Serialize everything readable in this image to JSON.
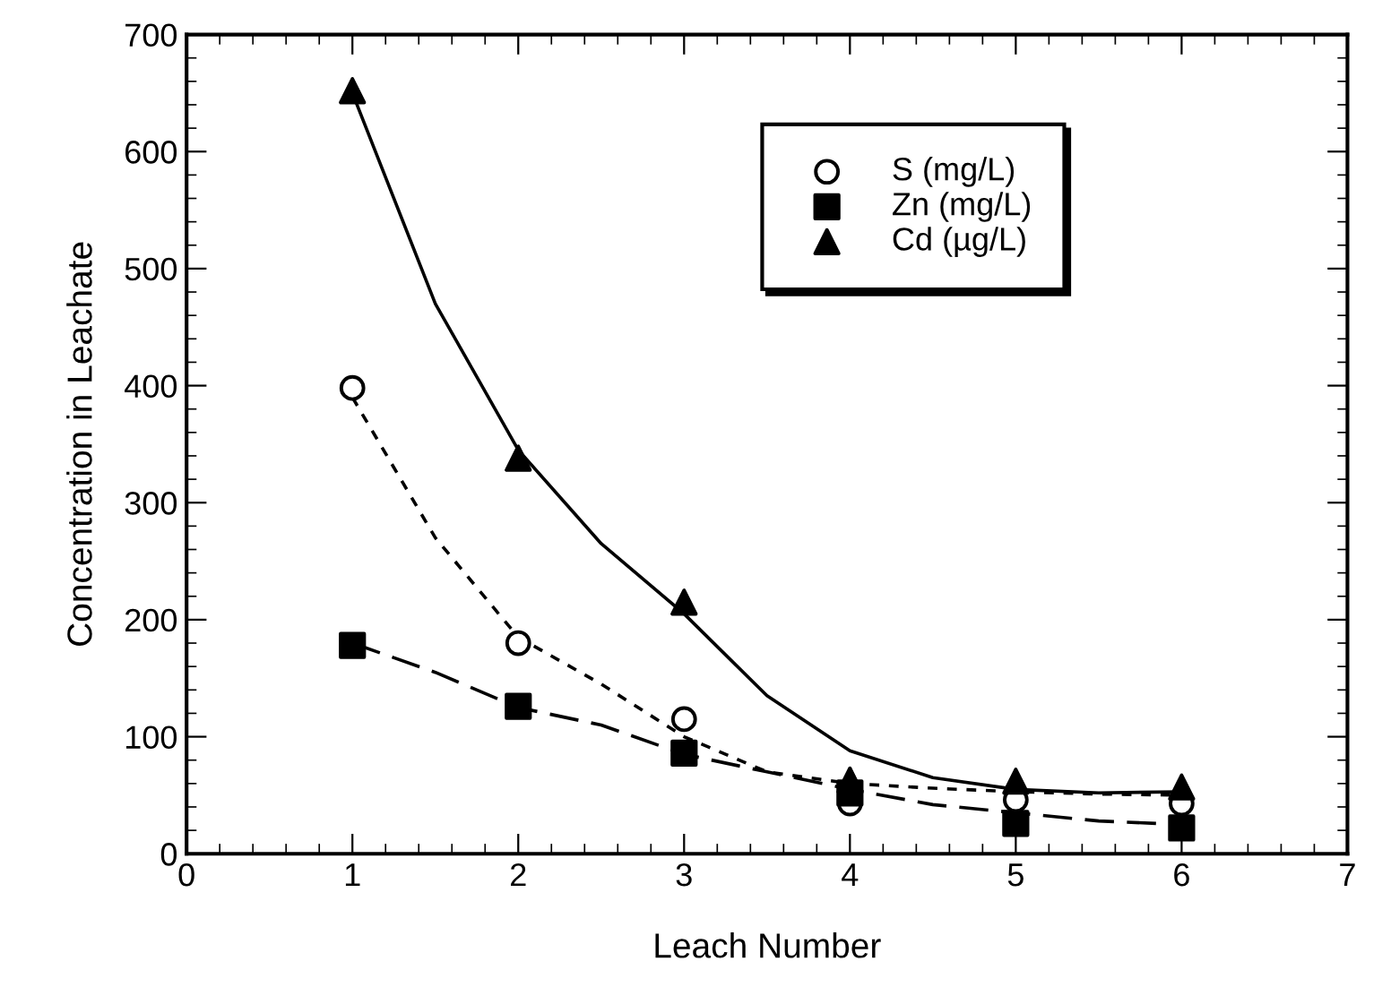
{
  "chart_data": {
    "type": "scatter",
    "xlabel": "Leach Number",
    "ylabel": "Concentration in Leachate",
    "xlim": [
      0,
      7
    ],
    "ylim": [
      0,
      700
    ],
    "xticks": [
      0,
      1,
      2,
      3,
      4,
      5,
      6,
      7
    ],
    "yticks": [
      0,
      100,
      200,
      300,
      400,
      500,
      600,
      700
    ],
    "grid": false,
    "legend": "top right",
    "series": [
      {
        "name": "S (mg/L)",
        "marker": "circle",
        "color": "#000000",
        "x": [
          1,
          2,
          3,
          4,
          5,
          6
        ],
        "values": [
          398,
          180,
          115,
          43,
          46,
          43
        ]
      },
      {
        "name": "Zn (mg/L)",
        "marker": "square",
        "color": "#000000",
        "x": [
          1,
          2,
          3,
          4,
          5,
          6
        ],
        "values": [
          178,
          126,
          86,
          52,
          26,
          22
        ]
      },
      {
        "name": "Cd (µg/L)",
        "marker": "triangle",
        "color": "#000000",
        "x": [
          1,
          2,
          3,
          4,
          5,
          6
        ],
        "values": [
          652,
          338,
          215,
          63,
          62,
          57
        ]
      },
      {
        "type": "line",
        "line_style": "dotted",
        "marker": "none",
        "color": "#000000",
        "x": [
          1,
          1.5,
          2,
          2.5,
          3,
          3.5,
          4,
          4.5,
          5,
          5.5,
          6
        ],
        "values": [
          390,
          270,
          185,
          145,
          100,
          70,
          60,
          56,
          53,
          51,
          50
        ]
      },
      {
        "type": "line",
        "line_style": "dashed",
        "marker": "none",
        "color": "#000000",
        "x": [
          1,
          1.5,
          2,
          2.5,
          3,
          3.5,
          4,
          4.5,
          5,
          5.5,
          6
        ],
        "values": [
          180,
          155,
          125,
          110,
          85,
          70,
          55,
          42,
          35,
          28,
          25
        ]
      },
      {
        "type": "line",
        "line_style": "solid",
        "marker": "none",
        "color": "#000000",
        "x": [
          1,
          1.5,
          2,
          2.5,
          3,
          3.5,
          4,
          4.5,
          5,
          5.5,
          6
        ],
        "values": [
          650,
          470,
          345,
          265,
          205,
          135,
          88,
          65,
          55,
          52,
          53
        ]
      }
    ]
  }
}
